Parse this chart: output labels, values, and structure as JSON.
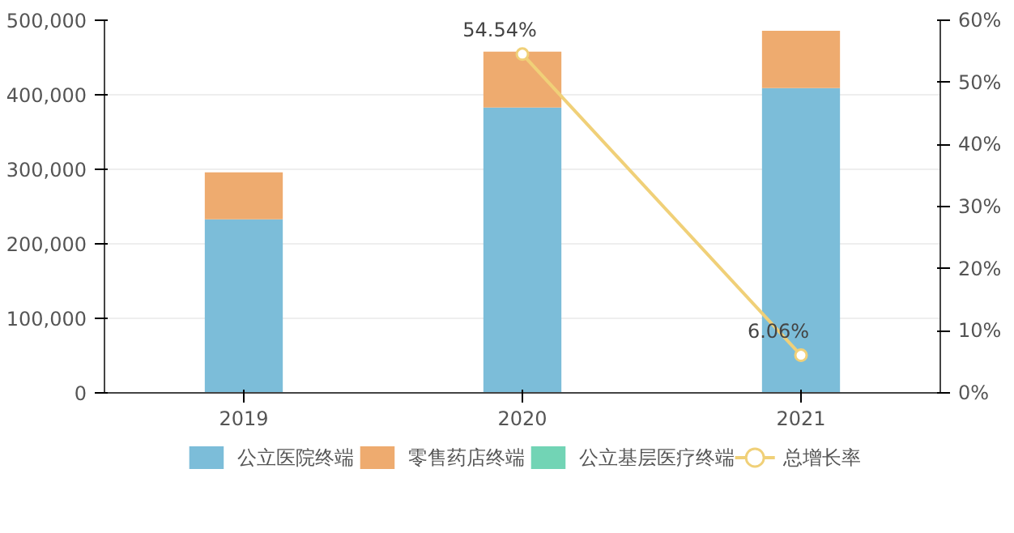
{
  "chart_data": {
    "type": "bar",
    "categories": [
      "2019",
      "2020",
      "2021"
    ],
    "stacked": true,
    "grid": "y",
    "legend": "bottom",
    "ylim": [
      0,
      500000
    ],
    "yticks": [
      {
        "value": 0,
        "label": "0"
      },
      {
        "value": 100000,
        "label": "100,000"
      },
      {
        "value": 200000,
        "label": "200,000"
      },
      {
        "value": 300000,
        "label": "300,000"
      },
      {
        "value": 400000,
        "label": "400,000"
      },
      {
        "value": 500000,
        "label": "500,000"
      }
    ],
    "y2lim": [
      0,
      60
    ],
    "y2ticks": [
      {
        "value": 0,
        "label": "0%"
      },
      {
        "value": 10,
        "label": "10%"
      },
      {
        "value": 20,
        "label": "20%"
      },
      {
        "value": 30,
        "label": "30%"
      },
      {
        "value": 40,
        "label": "40%"
      },
      {
        "value": 50,
        "label": "50%"
      },
      {
        "value": 60,
        "label": "60%"
      }
    ],
    "series": [
      {
        "name": "公立医院终端",
        "color": "#7cbdd9",
        "values": [
          233000,
          383000,
          409000
        ]
      },
      {
        "name": "零售药店终端",
        "color": "#eeab6f",
        "values": [
          63000,
          75000,
          77000
        ]
      },
      {
        "name": "公立基层医疗终端",
        "color": "#72d4b5",
        "values": [
          0,
          0,
          0
        ]
      },
      {
        "name": "总增长率",
        "type": "line",
        "axis": "y2",
        "color": "#f0d078",
        "marker": "circle",
        "values": [
          null,
          54.54,
          6.06
        ],
        "value_labels": [
          null,
          "54.54%",
          "6.06%"
        ]
      }
    ]
  }
}
